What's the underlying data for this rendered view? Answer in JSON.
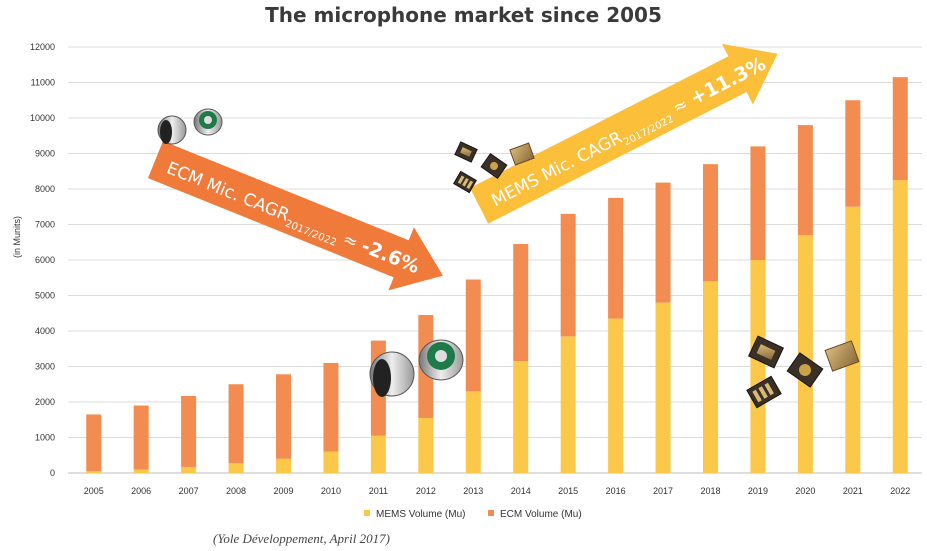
{
  "chart_data": {
    "type": "bar",
    "stacked": true,
    "title": "The microphone market since 2005",
    "ylabel": "(in Munits)",
    "xlabel": "",
    "ylim": [
      0,
      12000
    ],
    "yticks": [
      0,
      1000,
      2000,
      3000,
      4000,
      5000,
      6000,
      7000,
      8000,
      9000,
      10000,
      11000,
      12000
    ],
    "grid": true,
    "legend_position": "bottom",
    "categories": [
      "2005",
      "2006",
      "2007",
      "2008",
      "2009",
      "2010",
      "2011",
      "2012",
      "2013",
      "2014",
      "2015",
      "2016",
      "2017",
      "2018",
      "2019",
      "2020",
      "2021",
      "2022"
    ],
    "series": [
      {
        "name": "MEMS Volume (Mu)",
        "color": "#fbc84a",
        "values": [
          50,
          100,
          170,
          280,
          400,
          600,
          1050,
          1550,
          2300,
          3150,
          3850,
          4350,
          4800,
          5400,
          6000,
          6700,
          7500,
          8250
        ]
      },
      {
        "name": "ECM Volume (Mu)",
        "color": "#f28c50",
        "values": [
          1600,
          1800,
          2000,
          2220,
          2380,
          2500,
          2680,
          2900,
          3150,
          3300,
          3450,
          3400,
          3380,
          3300,
          3200,
          3100,
          3000,
          2900
        ]
      }
    ],
    "annotations": [
      {
        "prefix": "ECM Mic. CAGR",
        "subscript": "2017/2022",
        "relation": " ≈ ",
        "value": "-2.6%",
        "trend": "down",
        "color": "#f07a3a"
      },
      {
        "prefix": "MEMS Mic. CAGR",
        "subscript": "2017/2022",
        "relation": " ≈ ",
        "value": "+11.3%",
        "trend": "up",
        "color": "#fbbf3a"
      }
    ]
  },
  "source_note": "(Yole Développement, April 2017)",
  "icons": [
    "ecm-microphone-icon",
    "mems-microphone-icon"
  ]
}
